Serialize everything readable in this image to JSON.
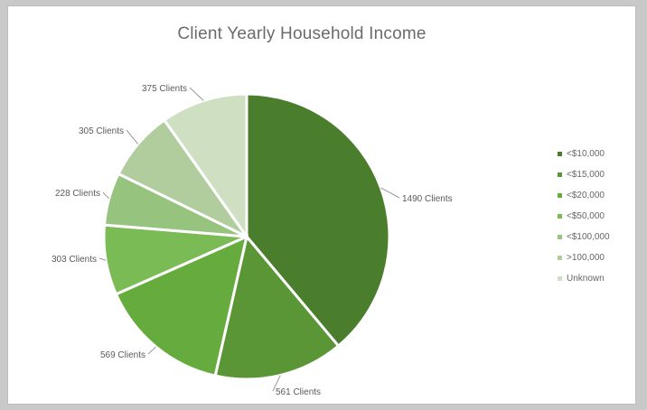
{
  "chart_data": {
    "type": "pie",
    "title": "Client Yearly Household Income",
    "categories": [
      "<$10,000",
      "<$15,000",
      "<$20,000",
      "<$50,000",
      "<$100,000",
      ">100,000",
      "Unknown"
    ],
    "values": [
      1490,
      561,
      569,
      303,
      228,
      305,
      375
    ],
    "value_labels": [
      "1490 Clients",
      "561 Clients",
      "569 Clients",
      "303 Clients",
      "228 Clients",
      "305 Clients",
      "375 Clients"
    ],
    "colors": [
      "#4a7d2c",
      "#5a9636",
      "#66ab3e",
      "#7bbb55",
      "#96c47e",
      "#b1cd9e",
      "#cfe0c2"
    ],
    "legend_position": "right",
    "start_angle": "12 o'clock",
    "direction": "clockwise"
  }
}
